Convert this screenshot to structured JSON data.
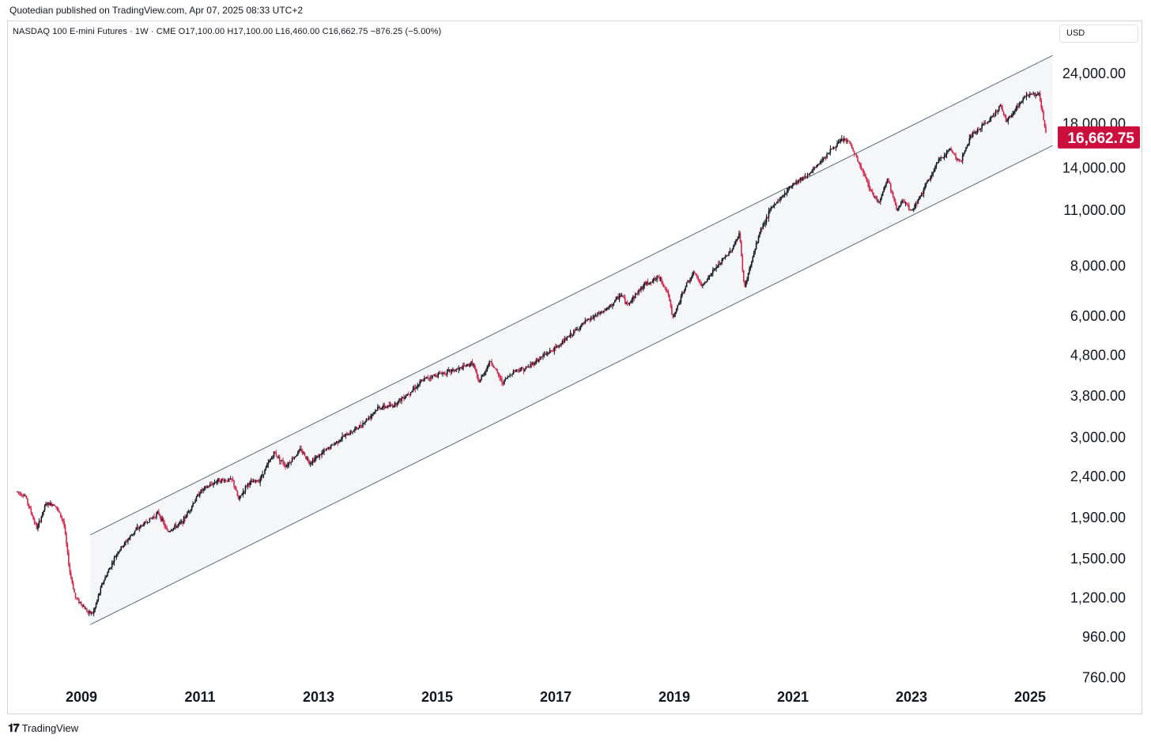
{
  "header": {
    "publish_line": "Quotedian published on TradingView.com, Apr 07, 2025 08:33 UTC+2",
    "symbol_line": "NASDAQ 100 E-mini Futures · 1W · CME  O17,100.00  H17,100.00  L16,460.00  C16,662.75  −876.25 (−5.00%)"
  },
  "currency_button": {
    "label": "USD"
  },
  "footer": {
    "logo_mark": "𝟏𝟕",
    "logo_text": "TradingView"
  },
  "last_price": {
    "label": "16,662.75",
    "value": 16662.75,
    "color": "#cc0f3c"
  },
  "colors": {
    "up": "#131722",
    "down": "#d1264a",
    "channel_fill": "#f5f6f8",
    "channel_line": "#5d6a79"
  },
  "chart_data": {
    "type": "candlestick",
    "scale": "log",
    "title": "NASDAQ 100 E-mini Futures",
    "interval": "1W",
    "exchange": "CME",
    "ylim": [
      760,
      26000
    ],
    "xlim": [
      2007.92,
      2025.55
    ],
    "y_ticks": [
      {
        "value": 24000,
        "label": "24,000.00"
      },
      {
        "value": 18000,
        "label": "18,000.00"
      },
      {
        "value": 14000,
        "label": "14,000.00"
      },
      {
        "value": 11000,
        "label": "11,000.00"
      },
      {
        "value": 8000,
        "label": "8,000.00"
      },
      {
        "value": 6000,
        "label": "6,000.00"
      },
      {
        "value": 4800,
        "label": "4,800.00"
      },
      {
        "value": 3800,
        "label": "3,800.00"
      },
      {
        "value": 3000,
        "label": "3,000.00"
      },
      {
        "value": 2400,
        "label": "2,400.00"
      },
      {
        "value": 1900,
        "label": "1,900.00"
      },
      {
        "value": 1500,
        "label": "1,500.00"
      },
      {
        "value": 1200,
        "label": "1,200.00"
      },
      {
        "value": 960,
        "label": "960.00"
      },
      {
        "value": 760,
        "label": "760.00"
      }
    ],
    "x_ticks": [
      {
        "value": 2009.0,
        "label": "2009"
      },
      {
        "value": 2011.0,
        "label": "2011"
      },
      {
        "value": 2013.0,
        "label": "2013"
      },
      {
        "value": 2015.0,
        "label": "2015"
      },
      {
        "value": 2017.0,
        "label": "2017"
      },
      {
        "value": 2019.0,
        "label": "2019"
      },
      {
        "value": 2021.0,
        "label": "2021"
      },
      {
        "value": 2023.0,
        "label": "2023"
      },
      {
        "value": 2025.0,
        "label": "2025"
      }
    ],
    "price_path": [
      [
        2007.92,
        2200
      ],
      [
        2008.05,
        2150
      ],
      [
        2008.25,
        1780
      ],
      [
        2008.4,
        2050
      ],
      [
        2008.55,
        2050
      ],
      [
        2008.7,
        1850
      ],
      [
        2008.8,
        1400
      ],
      [
        2008.9,
        1200
      ],
      [
        2009.0,
        1160
      ],
      [
        2009.12,
        1100
      ],
      [
        2009.2,
        1100
      ],
      [
        2009.35,
        1300
      ],
      [
        2009.6,
        1550
      ],
      [
        2009.9,
        1760
      ],
      [
        2010.3,
        1950
      ],
      [
        2010.45,
        1750
      ],
      [
        2010.7,
        1850
      ],
      [
        2011.0,
        2200
      ],
      [
        2011.3,
        2350
      ],
      [
        2011.55,
        2350
      ],
      [
        2011.65,
        2100
      ],
      [
        2011.8,
        2300
      ],
      [
        2012.0,
        2350
      ],
      [
        2012.25,
        2750
      ],
      [
        2012.45,
        2550
      ],
      [
        2012.7,
        2800
      ],
      [
        2012.85,
        2600
      ],
      [
        2013.0,
        2700
      ],
      [
        2013.4,
        3000
      ],
      [
        2013.7,
        3200
      ],
      [
        2014.0,
        3550
      ],
      [
        2014.25,
        3600
      ],
      [
        2014.5,
        3850
      ],
      [
        2014.8,
        4200
      ],
      [
        2015.0,
        4300
      ],
      [
        2015.4,
        4450
      ],
      [
        2015.6,
        4600
      ],
      [
        2015.7,
        4100
      ],
      [
        2015.9,
        4650
      ],
      [
        2016.1,
        4100
      ],
      [
        2016.3,
        4400
      ],
      [
        2016.5,
        4450
      ],
      [
        2016.8,
        4800
      ],
      [
        2017.0,
        5000
      ],
      [
        2017.5,
        5800
      ],
      [
        2017.9,
        6300
      ],
      [
        2018.1,
        6800
      ],
      [
        2018.2,
        6400
      ],
      [
        2018.5,
        7200
      ],
      [
        2018.75,
        7500
      ],
      [
        2018.9,
        6800
      ],
      [
        2018.97,
        5900
      ],
      [
        2019.2,
        7200
      ],
      [
        2019.35,
        7700
      ],
      [
        2019.45,
        7100
      ],
      [
        2019.7,
        7900
      ],
      [
        2019.95,
        8700
      ],
      [
        2020.1,
        9600
      ],
      [
        2020.18,
        7000
      ],
      [
        2020.22,
        7400
      ],
      [
        2020.45,
        9800
      ],
      [
        2020.65,
        11200
      ],
      [
        2020.8,
        11800
      ],
      [
        2021.0,
        12800
      ],
      [
        2021.3,
        13600
      ],
      [
        2021.6,
        15300
      ],
      [
        2021.85,
        16500
      ],
      [
        2021.95,
        16200
      ],
      [
        2022.1,
        14500
      ],
      [
        2022.35,
        12000
      ],
      [
        2022.45,
        11500
      ],
      [
        2022.6,
        13200
      ],
      [
        2022.75,
        11000
      ],
      [
        2022.85,
        11600
      ],
      [
        2023.0,
        10900
      ],
      [
        2023.2,
        12300
      ],
      [
        2023.45,
        14500
      ],
      [
        2023.65,
        15600
      ],
      [
        2023.82,
        14400
      ],
      [
        2024.0,
        16800
      ],
      [
        2024.3,
        18300
      ],
      [
        2024.5,
        20000
      ],
      [
        2024.6,
        18200
      ],
      [
        2024.75,
        19600
      ],
      [
        2024.95,
        21300
      ],
      [
        2025.05,
        21400
      ],
      [
        2025.15,
        21300
      ],
      [
        2025.2,
        19500
      ],
      [
        2025.25,
        17500
      ],
      [
        2025.28,
        16662.75
      ]
    ],
    "channel": {
      "start_x": 2009.15,
      "end_x": 2025.38,
      "upper": [
        1720,
        26600
      ],
      "lower": [
        1030,
        15900
      ]
    },
    "last_close": 16662.75
  }
}
